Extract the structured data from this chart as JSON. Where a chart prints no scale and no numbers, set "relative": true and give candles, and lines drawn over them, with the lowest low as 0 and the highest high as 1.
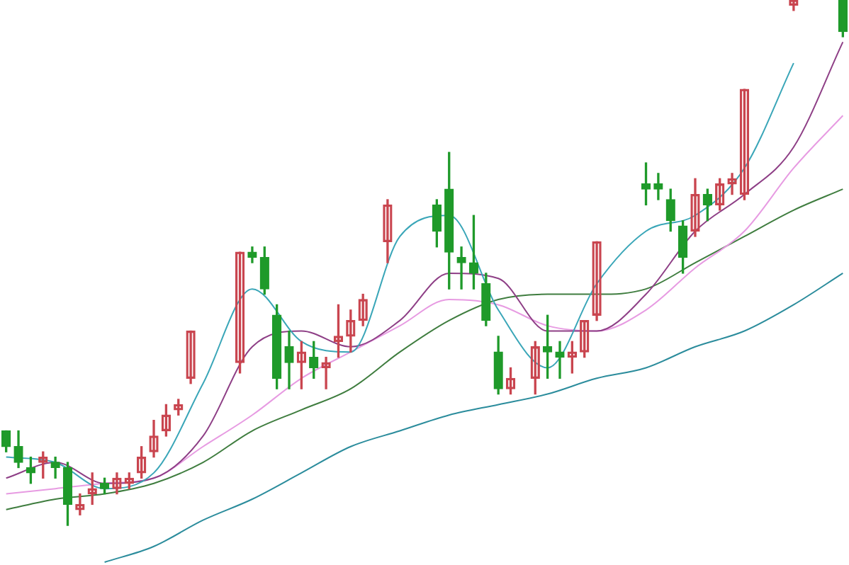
{
  "chart_data": {
    "type": "candlestick",
    "relative": true,
    "legend": false,
    "marker": "none",
    "categories": [
      null,
      null,
      null,
      null,
      null,
      null,
      null,
      null,
      null,
      null,
      null,
      null,
      null,
      null,
      null,
      null,
      null,
      null,
      null,
      null,
      null,
      null,
      null,
      null,
      null,
      null,
      null,
      null,
      null,
      null,
      null,
      null,
      null,
      null,
      null,
      null,
      null,
      null,
      null,
      null,
      null,
      null,
      null,
      null,
      null,
      null,
      null,
      null,
      null,
      null,
      null,
      null,
      null,
      null,
      null,
      null,
      null,
      null,
      null,
      null,
      null,
      null,
      null,
      null,
      null,
      null,
      null,
      null,
      null
    ],
    "ohlc": [
      [
        0.18,
        0.18,
        0.14,
        0.15
      ],
      [
        0.15,
        0.18,
        0.11,
        0.12
      ],
      [
        0.11,
        0.13,
        0.08,
        0.1
      ],
      [
        0.12,
        0.14,
        0.09,
        0.13
      ],
      [
        0.12,
        0.13,
        0.09,
        0.11
      ],
      [
        0.11,
        0.12,
        0,
        0.04
      ],
      [
        0.03,
        0.06,
        0.02,
        0.04
      ],
      [
        0.06,
        0.1,
        0.04,
        0.07
      ],
      [
        0.08,
        0.09,
        0.06,
        0.07
      ],
      [
        0.07,
        0.1,
        0.06,
        0.09
      ],
      [
        0.08,
        0.1,
        0.07,
        0.09
      ],
      [
        0.1,
        0.15,
        0.09,
        0.13
      ],
      [
        0.14,
        0.2,
        0.13,
        0.17
      ],
      [
        0.18,
        0.23,
        0.17,
        0.21
      ],
      [
        0.22,
        0.24,
        0.21,
        0.23
      ],
      [
        0.28,
        0.37,
        0.27,
        0.37
      ],
      null,
      null,
      null,
      [
        0.31,
        0.52,
        0.29,
        0.52
      ],
      [
        0.52,
        0.53,
        0.5,
        0.51
      ],
      [
        0.51,
        0.53,
        0.44,
        0.45
      ],
      [
        0.4,
        0.42,
        0.26,
        0.28
      ],
      [
        0.34,
        0.37,
        0.26,
        0.31
      ],
      [
        0.31,
        0.35,
        0.26,
        0.33
      ],
      [
        0.32,
        0.35,
        0.28,
        0.3
      ],
      [
        0.3,
        0.32,
        0.26,
        0.31
      ],
      [
        0.35,
        0.42,
        0.32,
        0.36
      ],
      [
        0.36,
        0.41,
        0.33,
        0.39
      ],
      [
        0.39,
        0.44,
        0.38,
        0.43
      ],
      null,
      [
        0.54,
        0.62,
        0.5,
        0.61
      ],
      null,
      null,
      null,
      [
        0.61,
        0.62,
        0.53,
        0.56
      ],
      [
        0.64,
        0.71,
        0.45,
        0.52
      ],
      [
        0.51,
        0.53,
        0.45,
        0.5
      ],
      [
        0.5,
        0.59,
        0.45,
        0.48
      ],
      [
        0.46,
        0.48,
        0.38,
        0.39
      ],
      [
        0.33,
        0.36,
        0.25,
        0.26
      ],
      [
        0.26,
        0.3,
        0.25,
        0.28
      ],
      null,
      [
        0.28,
        0.35,
        0.25,
        0.34
      ],
      [
        0.34,
        0.4,
        0.28,
        0.33
      ],
      [
        0.33,
        0.35,
        0.28,
        0.32
      ],
      [
        0.32,
        0.35,
        0.29,
        0.33
      ],
      [
        0.33,
        0.39,
        0.32,
        0.39
      ],
      [
        0.4,
        0.54,
        0.39,
        0.54
      ],
      null,
      null,
      null,
      [
        0.65,
        0.69,
        0.61,
        0.64
      ],
      [
        0.65,
        0.67,
        0.62,
        0.64
      ],
      [
        0.62,
        0.64,
        0.56,
        0.58
      ],
      [
        0.57,
        0.58,
        0.48,
        0.51
      ],
      [
        0.56,
        0.66,
        0.55,
        0.63
      ],
      [
        0.63,
        0.64,
        0.58,
        0.61
      ],
      [
        0.61,
        0.66,
        0.6,
        0.65
      ],
      [
        0.65,
        0.67,
        0.63,
        0.66
      ],
      [
        0.63,
        0.83,
        0.62,
        0.83
      ],
      null,
      null,
      null,
      [
        0.99,
        1,
        0.98,
        1
      ],
      null,
      null,
      null,
      [
        1,
        1,
        0.93,
        0.94
      ]
    ],
    "colors": [
      "#1f9a2a",
      "#1f9a2a",
      "#1f9a2a",
      "#c9454f",
      "#1f9a2a",
      "#1f9a2a",
      "#c9454f",
      "#c9454f",
      "#1f9a2a",
      "#c9454f",
      "#c9454f",
      "#c9454f",
      "#c9454f",
      "#c9454f",
      "#c9454f",
      "#c9454f",
      null,
      null,
      null,
      "#c9454f",
      "#1f9a2a",
      "#1f9a2a",
      "#1f9a2a",
      "#1f9a2a",
      "#c9454f",
      "#1f9a2a",
      "#c9454f",
      "#c9454f",
      "#c9454f",
      "#c9454f",
      null,
      "#c9454f",
      null,
      null,
      null,
      "#1f9a2a",
      "#1f9a2a",
      "#1f9a2a",
      "#1f9a2a",
      "#1f9a2a",
      "#1f9a2a",
      "#c9454f",
      null,
      "#c9454f",
      "#1f9a2a",
      "#1f9a2a",
      "#c9454f",
      "#c9454f",
      "#c9454f",
      null,
      null,
      null,
      "#1f9a2a",
      "#1f9a2a",
      "#1f9a2a",
      "#1f9a2a",
      "#c9454f",
      "#1f9a2a",
      "#c9454f",
      "#c9454f",
      "#c9454f",
      null,
      null,
      null,
      "#c9454f",
      null,
      null,
      null,
      "#1f9a2a"
    ],
    "series": [
      {
        "type": "line",
        "color": "#3aa6b8",
        "values": [
          0.13,
          null,
          null,
          null,
          0.12,
          null,
          null,
          null,
          0.07,
          null,
          null,
          null,
          0.1,
          null,
          null,
          null,
          0.27,
          null,
          null,
          null,
          0.45,
          null,
          null,
          null,
          0.35,
          null,
          null,
          null,
          0.33,
          null,
          null,
          null,
          0.55,
          null,
          null,
          null,
          0.59,
          null,
          null,
          null,
          0.41,
          null,
          null,
          null,
          0.3,
          null,
          null,
          null,
          0.46,
          null,
          null,
          null,
          0.56,
          null,
          null,
          null,
          0.59,
          null,
          null,
          null,
          0.68,
          null,
          null,
          null,
          0.88,
          null,
          null,
          null,
          null
        ]
      },
      {
        "type": "line",
        "color": "#8e3f86",
        "values": [
          0.09,
          null,
          null,
          null,
          0.12,
          null,
          null,
          null,
          0.08,
          null,
          null,
          null,
          0.09,
          null,
          null,
          null,
          0.17,
          null,
          null,
          null,
          0.34,
          null,
          null,
          null,
          0.37,
          null,
          null,
          null,
          0.34,
          null,
          null,
          null,
          0.39,
          null,
          null,
          null,
          0.48,
          null,
          null,
          null,
          0.47,
          null,
          null,
          null,
          0.37,
          null,
          null,
          null,
          0.37,
          null,
          null,
          null,
          0.44,
          null,
          null,
          null,
          0.56,
          null,
          null,
          null,
          0.63,
          null,
          null,
          null,
          0.72,
          null,
          null,
          null,
          0.92
        ]
      },
      {
        "type": "line",
        "color": "#e79be2",
        "values": [
          0.06,
          null,
          null,
          null,
          0.07,
          null,
          null,
          null,
          0.08,
          null,
          null,
          null,
          0.09,
          null,
          null,
          null,
          0.15,
          null,
          null,
          null,
          0.21,
          null,
          null,
          null,
          0.28,
          null,
          null,
          null,
          0.33,
          null,
          null,
          null,
          0.38,
          null,
          null,
          null,
          0.43,
          null,
          null,
          null,
          0.42,
          null,
          null,
          null,
          0.38,
          null,
          null,
          null,
          0.37,
          null,
          null,
          null,
          0.41,
          null,
          null,
          null,
          0.49,
          null,
          null,
          null,
          0.56,
          null,
          null,
          null,
          0.68,
          null,
          null,
          null,
          0.78
        ]
      },
      {
        "type": "line",
        "color": "#3f7d3f",
        "values": [
          0.03,
          null,
          null,
          null,
          0.05,
          null,
          null,
          null,
          0.06,
          null,
          null,
          null,
          0.08,
          null,
          null,
          null,
          0.12,
          null,
          null,
          null,
          0.18,
          null,
          null,
          null,
          0.22,
          null,
          null,
          null,
          0.26,
          null,
          null,
          null,
          0.33,
          null,
          null,
          null,
          0.39,
          null,
          null,
          null,
          0.43,
          null,
          null,
          null,
          0.44,
          null,
          null,
          null,
          0.44,
          null,
          null,
          null,
          0.45,
          null,
          null,
          null,
          0.5,
          null,
          null,
          null,
          0.55,
          null,
          null,
          null,
          0.6,
          null,
          null,
          null,
          0.64
        ]
      },
      {
        "type": "line",
        "color": "#2b8c9c",
        "values": [
          null,
          null,
          null,
          null,
          null,
          null,
          null,
          null,
          -0.07,
          null,
          null,
          null,
          -0.04,
          null,
          null,
          null,
          0.01,
          null,
          null,
          null,
          0.05,
          null,
          null,
          null,
          0.1,
          null,
          null,
          null,
          0.15,
          null,
          null,
          null,
          0.18,
          null,
          null,
          null,
          0.21,
          null,
          null,
          null,
          0.23,
          null,
          null,
          null,
          0.25,
          null,
          null,
          null,
          0.28,
          null,
          null,
          null,
          0.3,
          null,
          null,
          null,
          0.34,
          null,
          null,
          null,
          0.37,
          null,
          null,
          null,
          0.42,
          null,
          null,
          null,
          0.48
        ]
      }
    ]
  }
}
